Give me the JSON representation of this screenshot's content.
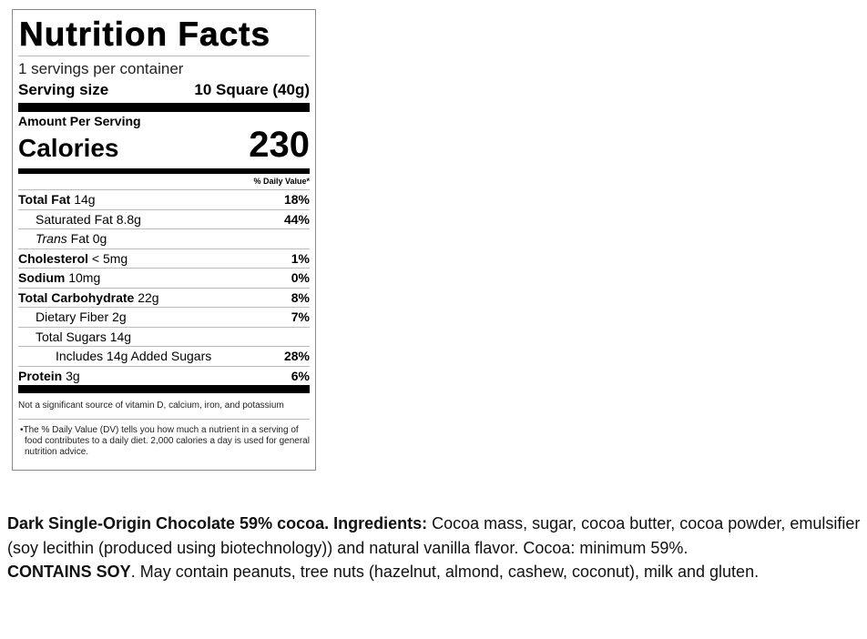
{
  "label": {
    "title": "Nutrition Facts",
    "servings_per_container": "1 servings per container",
    "serving_size_label": "Serving size",
    "serving_size_value": "10 Square (40g)",
    "amount_per_serving": "Amount Per Serving",
    "calories_label": "Calories",
    "calories_value": "230",
    "dv_header": "% Daily Value*",
    "rows": [
      {
        "name": "Total Fat",
        "amount": "14g",
        "dv": "18%"
      },
      {
        "name": "Saturated Fat",
        "amount": "8.8g",
        "dv": "44%"
      },
      {
        "name_italic": "Trans",
        "name": "Fat",
        "amount": "0g",
        "dv": ""
      },
      {
        "name": "Cholesterol",
        "amount": "< 5mg",
        "dv": "1%"
      },
      {
        "name": "Sodium",
        "amount": "10mg",
        "dv": "0%"
      },
      {
        "name": "Total Carbohydrate",
        "amount": "22g",
        "dv": "8%"
      },
      {
        "name": "Dietary Fiber",
        "amount": "2g",
        "dv": "7%"
      },
      {
        "name": "Total Sugars",
        "amount": "14g",
        "dv": ""
      },
      {
        "name": "Includes 14g Added Sugars",
        "amount": "",
        "dv": "28%"
      },
      {
        "name": "Protein",
        "amount": "3g",
        "dv": "6%"
      }
    ],
    "not_significant": "Not a significant source of vitamin D, calcium, iron, and potassium",
    "footnote": "•The % Daily Value (DV) tells you how much a nutrient in a serving of food contributes to a daily diet. 2,000 calories a day is used for general nutrition advice."
  },
  "ingredients": {
    "product_bold": "Dark Single-Origin Chocolate 59% cocoa. Ingredients:",
    "ingredients_text": " Cocoa mass, sugar, cocoa butter, cocoa powder, emulsifier (soy lecithin (produced using biotechnology)) and natural vanilla flavor. Cocoa: minimum 59%.",
    "contains_bold": "CONTAINS SOY",
    "allergen_text": ". May contain peanuts, tree nuts (hazelnut, almond, cashew, coconut), milk and gluten."
  }
}
